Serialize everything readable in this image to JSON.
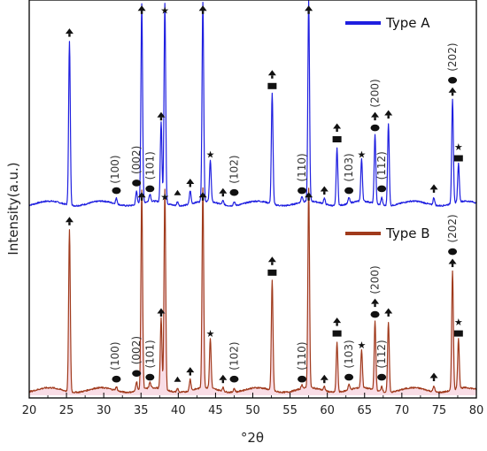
{
  "chart_data": {
    "type": "line",
    "xlabel": "°2θ",
    "ylabel": "Intensity(a.u.)",
    "xlim": [
      20,
      80
    ],
    "x_ticks": [
      20,
      25,
      30,
      35,
      40,
      45,
      50,
      55,
      60,
      65,
      70,
      75,
      80
    ],
    "legend_placement": "top-right of each panel",
    "grid": false,
    "series": [
      {
        "name": "Type A",
        "color": "#1f1fe0",
        "peaks": [
          {
            "x": 25.4,
            "h": 0.86
          },
          {
            "x": 31.7,
            "h": 0.03
          },
          {
            "x": 34.4,
            "h": 0.07
          },
          {
            "x": 35.1,
            "h": 1.05
          },
          {
            "x": 36.2,
            "h": 0.04
          },
          {
            "x": 37.7,
            "h": 0.42
          },
          {
            "x": 38.2,
            "h": 1.05
          },
          {
            "x": 39.9,
            "h": 0.02
          },
          {
            "x": 41.6,
            "h": 0.07
          },
          {
            "x": 43.3,
            "h": 1.05
          },
          {
            "x": 44.3,
            "h": 0.22
          },
          {
            "x": 46.0,
            "h": 0.02
          },
          {
            "x": 47.5,
            "h": 0.02
          },
          {
            "x": 52.6,
            "h": 0.58
          },
          {
            "x": 56.6,
            "h": 0.03
          },
          {
            "x": 57.5,
            "h": 1.05
          },
          {
            "x": 59.6,
            "h": 0.03
          },
          {
            "x": 61.3,
            "h": 0.3
          },
          {
            "x": 62.9,
            "h": 0.03
          },
          {
            "x": 64.6,
            "h": 0.22
          },
          {
            "x": 66.4,
            "h": 0.36
          },
          {
            "x": 67.3,
            "h": 0.04
          },
          {
            "x": 68.2,
            "h": 0.43
          },
          {
            "x": 74.3,
            "h": 0.04
          },
          {
            "x": 76.8,
            "h": 0.55
          },
          {
            "x": 77.6,
            "h": 0.2
          }
        ]
      },
      {
        "name": "Type B",
        "color": "#a03a1c",
        "peaks": [
          {
            "x": 25.4,
            "h": 0.85
          },
          {
            "x": 31.7,
            "h": 0.02
          },
          {
            "x": 34.4,
            "h": 0.05
          },
          {
            "x": 35.1,
            "h": 1.05
          },
          {
            "x": 36.2,
            "h": 0.03
          },
          {
            "x": 37.7,
            "h": 0.37
          },
          {
            "x": 38.2,
            "h": 1.05
          },
          {
            "x": 39.9,
            "h": 0.02
          },
          {
            "x": 41.6,
            "h": 0.06
          },
          {
            "x": 43.3,
            "h": 1.05
          },
          {
            "x": 44.3,
            "h": 0.26
          },
          {
            "x": 46.0,
            "h": 0.02
          },
          {
            "x": 47.5,
            "h": 0.02
          },
          {
            "x": 52.6,
            "h": 0.58
          },
          {
            "x": 56.6,
            "h": 0.02
          },
          {
            "x": 57.5,
            "h": 1.05
          },
          {
            "x": 59.6,
            "h": 0.02
          },
          {
            "x": 61.3,
            "h": 0.26
          },
          {
            "x": 62.9,
            "h": 0.03
          },
          {
            "x": 64.6,
            "h": 0.2
          },
          {
            "x": 66.4,
            "h": 0.36
          },
          {
            "x": 67.3,
            "h": 0.03
          },
          {
            "x": 68.2,
            "h": 0.37
          },
          {
            "x": 74.3,
            "h": 0.03
          },
          {
            "x": 76.8,
            "h": 0.63
          },
          {
            "x": 77.6,
            "h": 0.26
          }
        ]
      }
    ],
    "annotations": [
      {
        "x": 31.5,
        "text": "(100)"
      },
      {
        "x": 34.4,
        "text": "(002)"
      },
      {
        "x": 36.2,
        "text": "(101)"
      },
      {
        "x": 47.5,
        "text": "(102)"
      },
      {
        "x": 56.6,
        "text": "(110)"
      },
      {
        "x": 62.9,
        "text": "(103)"
      },
      {
        "x": 66.4,
        "text": "(200)"
      },
      {
        "x": 67.3,
        "text": "(112)"
      },
      {
        "x": 76.8,
        "text": "(202)"
      }
    ],
    "phase_markers": [
      {
        "x": 25.4,
        "marker": "spade"
      },
      {
        "x": 31.7,
        "marker": "oval"
      },
      {
        "x": 34.4,
        "marker": "oval"
      },
      {
        "x": 35.1,
        "marker": "spade"
      },
      {
        "x": 36.2,
        "marker": "oval"
      },
      {
        "x": 37.7,
        "marker": "spade"
      },
      {
        "x": 38.2,
        "marker": "star"
      },
      {
        "x": 39.9,
        "marker": "triangle"
      },
      {
        "x": 41.6,
        "marker": "spade"
      },
      {
        "x": 43.3,
        "marker": "spade"
      },
      {
        "x": 44.3,
        "marker": "star"
      },
      {
        "x": 46.0,
        "marker": "spade"
      },
      {
        "x": 47.5,
        "marker": "oval"
      },
      {
        "x": 52.6,
        "marker": "spade+square"
      },
      {
        "x": 56.6,
        "marker": "oval"
      },
      {
        "x": 57.5,
        "marker": "spade"
      },
      {
        "x": 59.6,
        "marker": "spade"
      },
      {
        "x": 61.3,
        "marker": "spade+square"
      },
      {
        "x": 62.9,
        "marker": "oval"
      },
      {
        "x": 64.6,
        "marker": "star"
      },
      {
        "x": 66.4,
        "marker": "spade+oval"
      },
      {
        "x": 67.3,
        "marker": "oval"
      },
      {
        "x": 68.2,
        "marker": "spade"
      },
      {
        "x": 74.3,
        "marker": "spade"
      },
      {
        "x": 76.8,
        "marker": "oval+spade"
      },
      {
        "x": 77.6,
        "marker": "star+square"
      }
    ]
  }
}
